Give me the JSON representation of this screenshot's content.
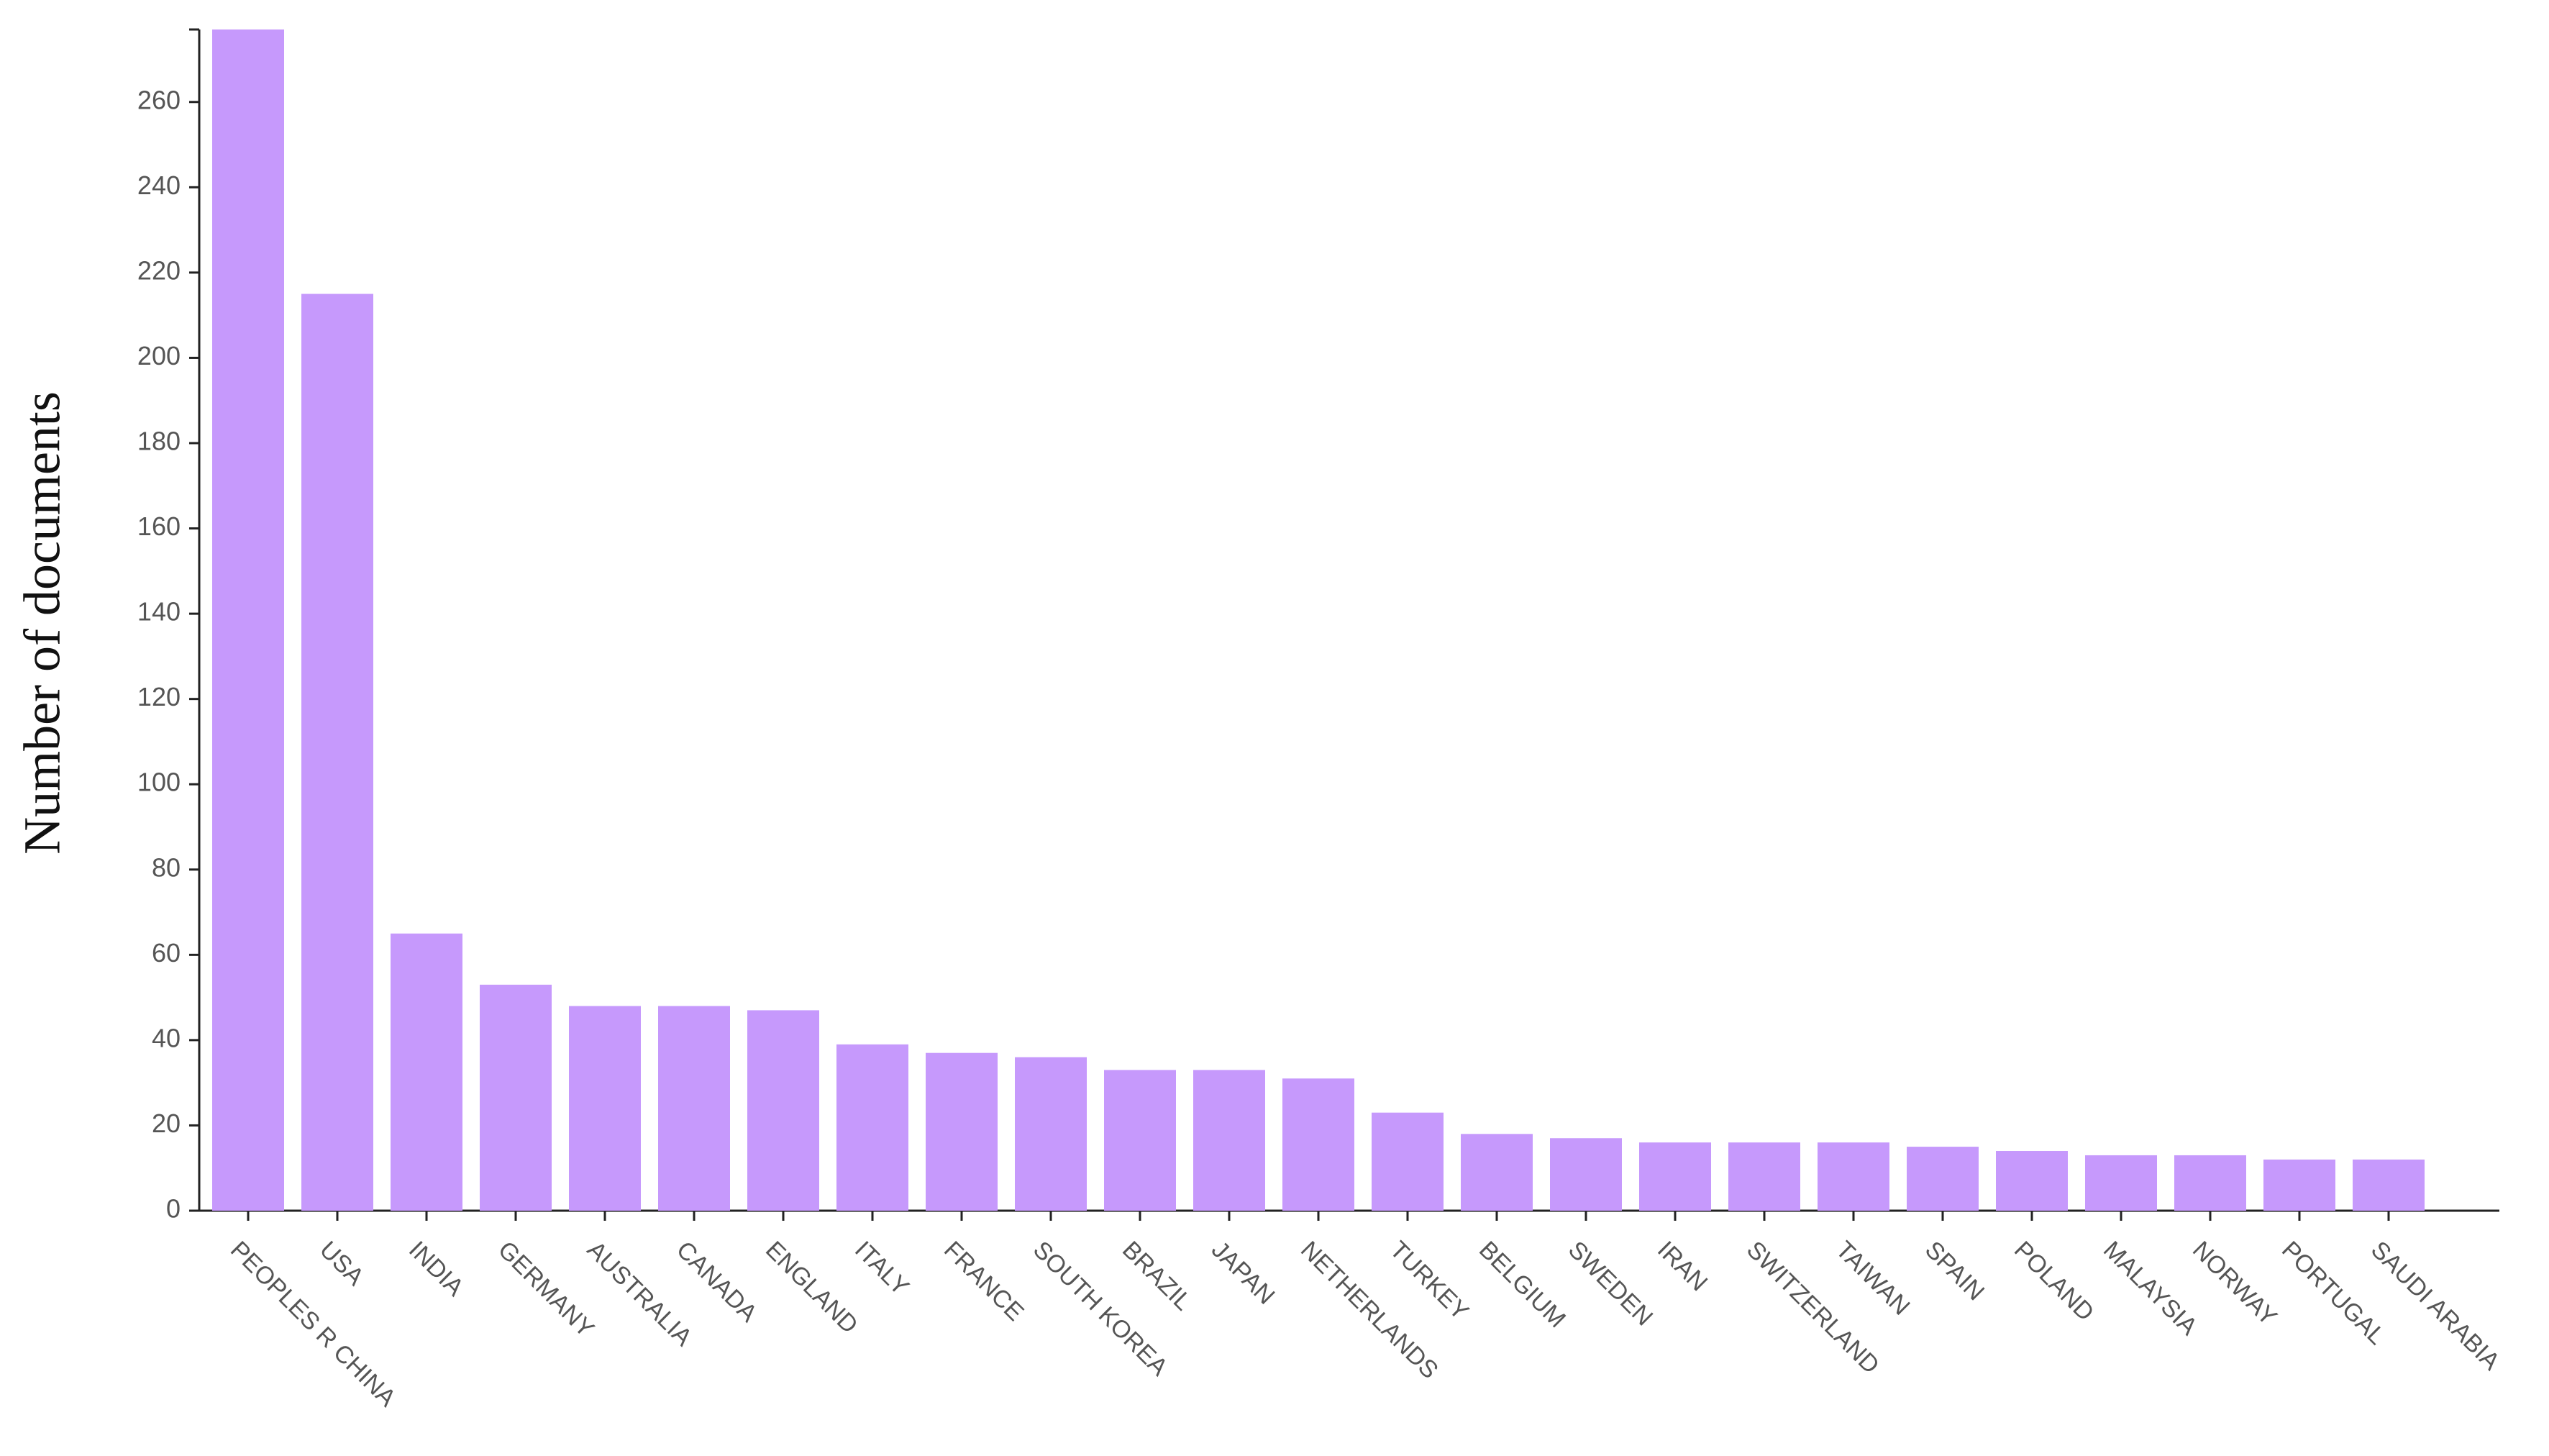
{
  "chart_data": {
    "type": "bar",
    "y_label": "Number of documents",
    "categories": [
      "PEOPLES R CHINA",
      "USA",
      "INDIA",
      "GERMANY",
      "AUSTRALIA",
      "CANADA",
      "ENGLAND",
      "ITALY",
      "FRANCE",
      "SOUTH KOREA",
      "BRAZIL",
      "JAPAN",
      "NETHERLANDS",
      "TURKEY",
      "BELGIUM",
      "SWEDEN",
      "IRAN",
      "SWITZERLAND",
      "TAIWAN",
      "SPAIN",
      "POLAND",
      "MALAYSIA",
      "NORWAY",
      "PORTUGAL",
      "SAUDI ARABIA"
    ],
    "values": [
      277,
      215,
      65,
      53,
      48,
      48,
      47,
      39,
      37,
      36,
      33,
      33,
      31,
      23,
      18,
      17,
      16,
      16,
      16,
      15,
      14,
      13,
      13,
      12,
      12
    ],
    "color": "#c699fc",
    "ylim": [
      0,
      277
    ],
    "yticks": [
      0,
      20,
      40,
      60,
      80,
      100,
      120,
      140,
      160,
      180,
      200,
      220,
      240,
      260
    ]
  }
}
